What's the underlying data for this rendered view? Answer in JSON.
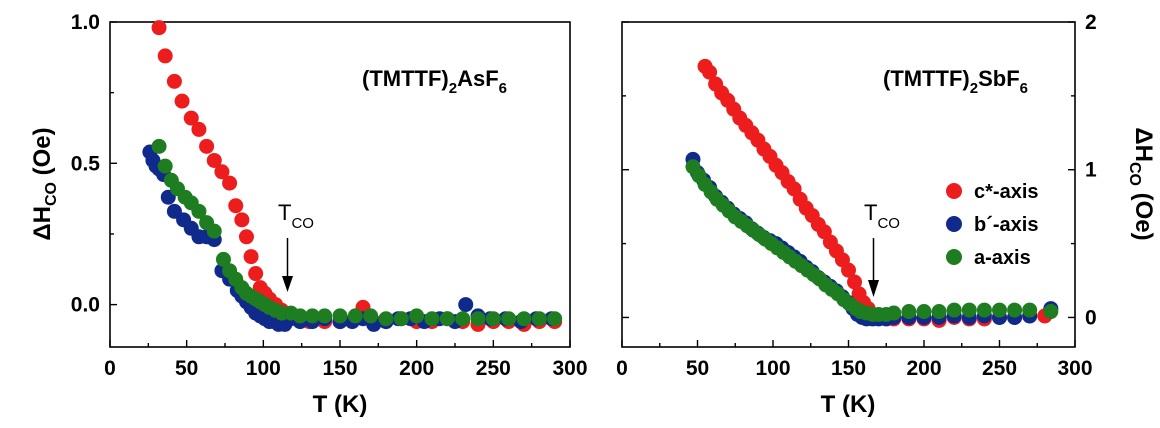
{
  "chart_data": [
    {
      "type": "scatter",
      "panel": "left",
      "title_main": "(TMTTF)",
      "title_sub1": "2",
      "title_mid": "AsF",
      "title_sub2": "6",
      "xlabel": "T (K)",
      "ylabel_main": "ΔH",
      "ylabel_sub": "CO",
      "ylabel_unit": " (Oe)",
      "xlim": [
        0,
        300
      ],
      "ylim": [
        -0.15,
        1.0
      ],
      "xticks": [
        "0",
        "50",
        "100",
        "150",
        "200",
        "250",
        "300"
      ],
      "yticks": [
        "0.0",
        "0.5",
        "1.0"
      ],
      "ytick_values": [
        0.0,
        0.5,
        1.0
      ],
      "annotation_main": "T",
      "annotation_sub": "CO",
      "annotation_x": 115,
      "series": [
        {
          "name": "c*-axis",
          "color": "#ee1d1d",
          "points": [
            [
              32,
              0.98
            ],
            [
              36,
              0.88
            ],
            [
              42,
              0.79
            ],
            [
              47,
              0.72
            ],
            [
              53,
              0.66
            ],
            [
              58,
              0.62
            ],
            [
              63,
              0.56
            ],
            [
              68,
              0.51
            ],
            [
              73,
              0.47
            ],
            [
              78,
              0.43
            ],
            [
              82,
              0.35
            ],
            [
              86,
              0.3
            ],
            [
              89,
              0.24
            ],
            [
              92,
              0.17
            ],
            [
              95,
              0.11
            ],
            [
              98,
              0.06
            ],
            [
              101,
              0.04
            ],
            [
              104,
              0.02
            ],
            [
              108,
              0.0
            ],
            [
              112,
              -0.02
            ],
            [
              116,
              -0.04
            ],
            [
              122,
              -0.05
            ],
            [
              130,
              -0.06
            ],
            [
              140,
              -0.06
            ],
            [
              150,
              -0.06
            ],
            [
              160,
              -0.05
            ],
            [
              165,
              -0.01
            ],
            [
              172,
              -0.06
            ],
            [
              180,
              -0.06
            ],
            [
              190,
              -0.05
            ],
            [
              200,
              -0.06
            ],
            [
              210,
              -0.06
            ],
            [
              220,
              -0.05
            ],
            [
              230,
              -0.06
            ],
            [
              240,
              -0.07
            ],
            [
              250,
              -0.06
            ],
            [
              260,
              -0.06
            ],
            [
              270,
              -0.07
            ],
            [
              280,
              -0.06
            ],
            [
              290,
              -0.06
            ]
          ]
        },
        {
          "name": "b´-axis",
          "color": "#102a8c",
          "points": [
            [
              26,
              0.54
            ],
            [
              28,
              0.51
            ],
            [
              30,
              0.49
            ],
            [
              32,
              0.48
            ],
            [
              35,
              0.46
            ],
            [
              38,
              0.38
            ],
            [
              42,
              0.33
            ],
            [
              48,
              0.3
            ],
            [
              53,
              0.27
            ],
            [
              58,
              0.24
            ],
            [
              63,
              0.24
            ],
            [
              68,
              0.23
            ],
            [
              73,
              0.12
            ],
            [
              78,
              0.09
            ],
            [
              83,
              0.05
            ],
            [
              86,
              0.03
            ],
            [
              89,
              0.01
            ],
            [
              92,
              -0.01
            ],
            [
              95,
              -0.03
            ],
            [
              98,
              -0.04
            ],
            [
              101,
              -0.05
            ],
            [
              104,
              -0.06
            ],
            [
              107,
              -0.06
            ],
            [
              110,
              -0.07
            ],
            [
              114,
              -0.07
            ],
            [
              118,
              -0.05
            ],
            [
              124,
              -0.06
            ],
            [
              132,
              -0.06
            ],
            [
              140,
              -0.05
            ],
            [
              150,
              -0.06
            ],
            [
              158,
              -0.06
            ],
            [
              165,
              -0.05
            ],
            [
              172,
              -0.07
            ],
            [
              180,
              -0.06
            ],
            [
              188,
              -0.05
            ],
            [
              196,
              -0.05
            ],
            [
              205,
              -0.06
            ],
            [
              215,
              -0.05
            ],
            [
              225,
              -0.06
            ],
            [
              232,
              0.0
            ],
            [
              240,
              -0.04
            ],
            [
              248,
              -0.05
            ],
            [
              258,
              -0.05
            ],
            [
              268,
              -0.06
            ],
            [
              278,
              -0.05
            ],
            [
              288,
              -0.05
            ]
          ]
        },
        {
          "name": "a-axis",
          "color": "#1e7d21",
          "points": [
            [
              32,
              0.56
            ],
            [
              36,
              0.49
            ],
            [
              40,
              0.44
            ],
            [
              44,
              0.41
            ],
            [
              49,
              0.38
            ],
            [
              53,
              0.36
            ],
            [
              58,
              0.33
            ],
            [
              63,
              0.29
            ],
            [
              68,
              0.26
            ],
            [
              74,
              0.16
            ],
            [
              78,
              0.12
            ],
            [
              82,
              0.09
            ],
            [
              86,
              0.06
            ],
            [
              89,
              0.04
            ],
            [
              92,
              0.03
            ],
            [
              95,
              0.02
            ],
            [
              98,
              0.01
            ],
            [
              101,
              0.0
            ],
            [
              104,
              -0.01
            ],
            [
              108,
              -0.02
            ],
            [
              112,
              -0.03
            ],
            [
              118,
              -0.03
            ],
            [
              124,
              -0.04
            ],
            [
              132,
              -0.04
            ],
            [
              140,
              -0.04
            ],
            [
              150,
              -0.04
            ],
            [
              160,
              -0.04
            ],
            [
              170,
              -0.04
            ],
            [
              180,
              -0.05
            ],
            [
              190,
              -0.05
            ],
            [
              200,
              -0.04
            ],
            [
              210,
              -0.05
            ],
            [
              220,
              -0.05
            ],
            [
              230,
              -0.05
            ],
            [
              240,
              -0.05
            ],
            [
              250,
              -0.05
            ],
            [
              260,
              -0.05
            ],
            [
              270,
              -0.05
            ],
            [
              280,
              -0.05
            ],
            [
              290,
              -0.05
            ]
          ]
        }
      ]
    },
    {
      "type": "scatter",
      "panel": "right",
      "title_main": "(TMTTF)",
      "title_sub1": "2",
      "title_mid": "SbF",
      "title_sub2": "6",
      "xlabel": "T (K)",
      "ylabel_main": "ΔH",
      "ylabel_sub": "CO",
      "ylabel_unit": " (Oe)",
      "xlim": [
        0,
        300
      ],
      "ylim": [
        -0.2,
        2.0
      ],
      "xticks": [
        "0",
        "50",
        "100",
        "150",
        "200",
        "250",
        "300"
      ],
      "yticks": [
        "0",
        "1",
        "2"
      ],
      "ytick_values": [
        0,
        1,
        2
      ],
      "annotation_main": "T",
      "annotation_sub": "CO",
      "annotation_x": 164,
      "legend_position": "right",
      "series": [
        {
          "name": "c*-axis",
          "color": "#ee1d1d",
          "points": [
            [
              55,
              1.7
            ],
            [
              58,
              1.66
            ],
            [
              62,
              1.58
            ],
            [
              66,
              1.52
            ],
            [
              70,
              1.47
            ],
            [
              74,
              1.41
            ],
            [
              78,
              1.35
            ],
            [
              82,
              1.3
            ],
            [
              86,
              1.25
            ],
            [
              90,
              1.2
            ],
            [
              94,
              1.14
            ],
            [
              98,
              1.09
            ],
            [
              102,
              1.03
            ],
            [
              106,
              0.98
            ],
            [
              110,
              0.92
            ],
            [
              114,
              0.87
            ],
            [
              118,
              0.8
            ],
            [
              122,
              0.74
            ],
            [
              126,
              0.69
            ],
            [
              130,
              0.63
            ],
            [
              134,
              0.58
            ],
            [
              138,
              0.51
            ],
            [
              142,
              0.45
            ],
            [
              146,
              0.39
            ],
            [
              150,
              0.32
            ],
            [
              154,
              0.24
            ],
            [
              157,
              0.16
            ],
            [
              160,
              0.1
            ],
            [
              163,
              0.06
            ],
            [
              166,
              0.02
            ],
            [
              170,
              0.0
            ],
            [
              175,
              0.0
            ],
            [
              180,
              -0.01
            ],
            [
              190,
              -0.01
            ],
            [
              200,
              -0.01
            ],
            [
              210,
              -0.02
            ],
            [
              220,
              0.0
            ],
            [
              230,
              -0.01
            ],
            [
              240,
              -0.01
            ],
            [
              250,
              0.0
            ],
            [
              260,
              0.0
            ],
            [
              270,
              0.01
            ],
            [
              280,
              0.01
            ]
          ]
        },
        {
          "name": "b´-axis",
          "color": "#102a8c",
          "points": [
            [
              47,
              1.07
            ],
            [
              50,
              0.98
            ],
            [
              54,
              0.93
            ],
            [
              58,
              0.88
            ],
            [
              62,
              0.82
            ],
            [
              66,
              0.78
            ],
            [
              70,
              0.74
            ],
            [
              74,
              0.7
            ],
            [
              78,
              0.67
            ],
            [
              82,
              0.64
            ],
            [
              86,
              0.6
            ],
            [
              90,
              0.57
            ],
            [
              94,
              0.54
            ],
            [
              98,
              0.52
            ],
            [
              102,
              0.5
            ],
            [
              106,
              0.47
            ],
            [
              110,
              0.44
            ],
            [
              114,
              0.41
            ],
            [
              118,
              0.38
            ],
            [
              122,
              0.34
            ],
            [
              126,
              0.31
            ],
            [
              130,
              0.27
            ],
            [
              134,
              0.24
            ],
            [
              138,
              0.21
            ],
            [
              142,
              0.18
            ],
            [
              146,
              0.14
            ],
            [
              150,
              0.1
            ],
            [
              153,
              0.06
            ],
            [
              156,
              0.02
            ],
            [
              159,
              0.0
            ],
            [
              162,
              -0.01
            ],
            [
              166,
              -0.01
            ],
            [
              170,
              -0.01
            ],
            [
              175,
              -0.01
            ],
            [
              180,
              0.0
            ],
            [
              190,
              0.0
            ],
            [
              200,
              0.0
            ],
            [
              210,
              0.0
            ],
            [
              220,
              0.01
            ],
            [
              230,
              0.0
            ],
            [
              240,
              0.01
            ],
            [
              250,
              0.0
            ],
            [
              260,
              0.0
            ],
            [
              270,
              0.01
            ],
            [
              284,
              0.06
            ]
          ]
        },
        {
          "name": "a-axis",
          "color": "#1e7d21",
          "points": [
            [
              47,
              1.02
            ],
            [
              51,
              0.96
            ],
            [
              55,
              0.9
            ],
            [
              59,
              0.85
            ],
            [
              63,
              0.8
            ],
            [
              67,
              0.76
            ],
            [
              71,
              0.72
            ],
            [
              75,
              0.68
            ],
            [
              79,
              0.65
            ],
            [
              83,
              0.62
            ],
            [
              87,
              0.59
            ],
            [
              91,
              0.56
            ],
            [
              95,
              0.53
            ],
            [
              99,
              0.5
            ],
            [
              103,
              0.47
            ],
            [
              107,
              0.44
            ],
            [
              111,
              0.41
            ],
            [
              115,
              0.38
            ],
            [
              119,
              0.35
            ],
            [
              123,
              0.32
            ],
            [
              127,
              0.29
            ],
            [
              131,
              0.26
            ],
            [
              135,
              0.22
            ],
            [
              139,
              0.19
            ],
            [
              143,
              0.16
            ],
            [
              147,
              0.12
            ],
            [
              151,
              0.09
            ],
            [
              155,
              0.06
            ],
            [
              158,
              0.04
            ],
            [
              162,
              0.03
            ],
            [
              166,
              0.02
            ],
            [
              170,
              0.02
            ],
            [
              175,
              0.02
            ],
            [
              180,
              0.03
            ],
            [
              190,
              0.04
            ],
            [
              200,
              0.04
            ],
            [
              210,
              0.04
            ],
            [
              220,
              0.05
            ],
            [
              230,
              0.05
            ],
            [
              240,
              0.05
            ],
            [
              250,
              0.05
            ],
            [
              260,
              0.05
            ],
            [
              270,
              0.05
            ],
            [
              284,
              0.04
            ]
          ]
        }
      ]
    }
  ]
}
